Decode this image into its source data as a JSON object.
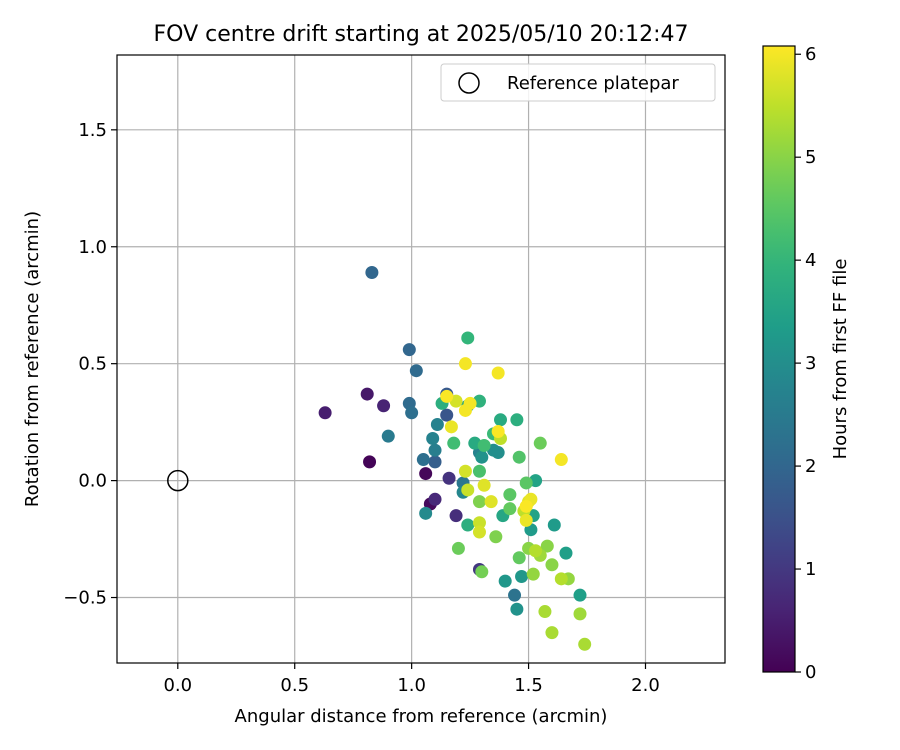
{
  "chart_data": {
    "type": "scatter",
    "title": "FOV centre drift starting at 2025/05/10 20:12:47",
    "xlabel": "Angular distance from reference (arcmin)",
    "ylabel": "Rotation from reference (arcmin)",
    "xlim": [
      -0.26,
      2.34
    ],
    "ylim": [
      -0.78,
      1.82
    ],
    "xticks": [
      {
        "v": 0.0,
        "label": "0.0"
      },
      {
        "v": 0.5,
        "label": "0.5"
      },
      {
        "v": 1.0,
        "label": "1.0"
      },
      {
        "v": 1.5,
        "label": "1.5"
      },
      {
        "v": 2.0,
        "label": "2.0"
      }
    ],
    "yticks": [
      {
        "v": -0.5,
        "label": "−0.5"
      },
      {
        "v": 0.0,
        "label": "0.0"
      },
      {
        "v": 0.5,
        "label": "0.5"
      },
      {
        "v": 1.0,
        "label": "1.0"
      },
      {
        "v": 1.5,
        "label": "1.5"
      }
    ],
    "grid": true,
    "legend": {
      "position": "top-right",
      "entries": [
        {
          "label": "Reference platepar",
          "marker": "open-circle"
        }
      ]
    },
    "reference_point": {
      "x": 0.0,
      "y": 0.0
    },
    "colorbar": {
      "label": "Hours from first FF file",
      "colormap": "viridis",
      "range": [
        0,
        6.08
      ],
      "ticks": [
        {
          "v": 0,
          "label": "0"
        },
        {
          "v": 1,
          "label": "1"
        },
        {
          "v": 2,
          "label": "2"
        },
        {
          "v": 3,
          "label": "3"
        },
        {
          "v": 4,
          "label": "4"
        },
        {
          "v": 5,
          "label": "5"
        },
        {
          "v": 6,
          "label": "6"
        }
      ]
    },
    "points": [
      {
        "x": 0.82,
        "y": 0.08,
        "c": 0.05
      },
      {
        "x": 1.06,
        "y": 0.03,
        "c": 0.1
      },
      {
        "x": 1.08,
        "y": -0.1,
        "c": 0.15
      },
      {
        "x": 0.81,
        "y": 0.37,
        "c": 0.4
      },
      {
        "x": 0.63,
        "y": 0.29,
        "c": 0.5
      },
      {
        "x": 0.88,
        "y": 0.32,
        "c": 0.6
      },
      {
        "x": 1.1,
        "y": -0.08,
        "c": 0.7
      },
      {
        "x": 1.19,
        "y": -0.15,
        "c": 0.8
      },
      {
        "x": 1.16,
        "y": 0.01,
        "c": 0.9
      },
      {
        "x": 1.29,
        "y": -0.38,
        "c": 1.0
      },
      {
        "x": 1.15,
        "y": 0.28,
        "c": 1.6
      },
      {
        "x": 1.15,
        "y": 0.37,
        "c": 1.7
      },
      {
        "x": 1.1,
        "y": 0.08,
        "c": 1.8
      },
      {
        "x": 0.83,
        "y": 0.89,
        "c": 2.0
      },
      {
        "x": 0.99,
        "y": 0.56,
        "c": 2.0
      },
      {
        "x": 1.02,
        "y": 0.47,
        "c": 2.1
      },
      {
        "x": 0.99,
        "y": 0.33,
        "c": 2.1
      },
      {
        "x": 1.0,
        "y": 0.29,
        "c": 2.2
      },
      {
        "x": 1.05,
        "y": 0.09,
        "c": 2.2
      },
      {
        "x": 1.44,
        "y": -0.49,
        "c": 2.3
      },
      {
        "x": 1.22,
        "y": -0.01,
        "c": 2.4
      },
      {
        "x": 0.9,
        "y": 0.19,
        "c": 2.5
      },
      {
        "x": 1.1,
        "y": 0.13,
        "c": 2.6
      },
      {
        "x": 1.09,
        "y": 0.18,
        "c": 2.7
      },
      {
        "x": 1.29,
        "y": 0.12,
        "c": 2.7
      },
      {
        "x": 1.11,
        "y": 0.24,
        "c": 2.7
      },
      {
        "x": 1.22,
        "y": -0.05,
        "c": 2.8
      },
      {
        "x": 1.06,
        "y": -0.14,
        "c": 2.9
      },
      {
        "x": 1.35,
        "y": 0.13,
        "c": 3.0
      },
      {
        "x": 1.37,
        "y": 0.12,
        "c": 3.0
      },
      {
        "x": 1.3,
        "y": 0.1,
        "c": 3.1
      },
      {
        "x": 1.45,
        "y": -0.55,
        "c": 3.1
      },
      {
        "x": 1.4,
        "y": -0.43,
        "c": 3.2
      },
      {
        "x": 1.47,
        "y": -0.41,
        "c": 3.2
      },
      {
        "x": 1.51,
        "y": -0.21,
        "c": 3.3
      },
      {
        "x": 1.61,
        "y": -0.19,
        "c": 3.3
      },
      {
        "x": 1.66,
        "y": -0.31,
        "c": 3.4
      },
      {
        "x": 1.72,
        "y": -0.49,
        "c": 3.4
      },
      {
        "x": 1.53,
        "y": 0.0,
        "c": 3.5
      },
      {
        "x": 1.52,
        "y": -0.15,
        "c": 3.5
      },
      {
        "x": 1.39,
        "y": -0.15,
        "c": 3.6
      },
      {
        "x": 1.24,
        "y": 0.32,
        "c": 3.6
      },
      {
        "x": 1.27,
        "y": 0.16,
        "c": 3.7
      },
      {
        "x": 1.38,
        "y": 0.26,
        "c": 3.7
      },
      {
        "x": 1.45,
        "y": 0.26,
        "c": 3.8
      },
      {
        "x": 1.24,
        "y": -0.19,
        "c": 3.8
      },
      {
        "x": 1.13,
        "y": 0.33,
        "c": 3.8
      },
      {
        "x": 1.29,
        "y": 0.34,
        "c": 3.9
      },
      {
        "x": 1.24,
        "y": 0.61,
        "c": 4.0
      },
      {
        "x": 1.35,
        "y": 0.2,
        "c": 4.1
      },
      {
        "x": 1.18,
        "y": 0.16,
        "c": 4.2
      },
      {
        "x": 1.31,
        "y": 0.15,
        "c": 4.2
      },
      {
        "x": 1.29,
        "y": 0.04,
        "c": 4.3
      },
      {
        "x": 1.46,
        "y": 0.1,
        "c": 4.4
      },
      {
        "x": 1.42,
        "y": -0.06,
        "c": 4.5
      },
      {
        "x": 1.49,
        "y": -0.01,
        "c": 4.5
      },
      {
        "x": 1.42,
        "y": -0.12,
        "c": 4.6
      },
      {
        "x": 1.46,
        "y": -0.33,
        "c": 4.6
      },
      {
        "x": 1.55,
        "y": 0.16,
        "c": 4.7
      },
      {
        "x": 1.2,
        "y": -0.29,
        "c": 4.7
      },
      {
        "x": 1.3,
        "y": -0.39,
        "c": 4.8
      },
      {
        "x": 1.29,
        "y": -0.09,
        "c": 4.9
      },
      {
        "x": 1.36,
        "y": -0.24,
        "c": 4.9
      },
      {
        "x": 1.5,
        "y": -0.29,
        "c": 5.0
      },
      {
        "x": 1.58,
        "y": -0.28,
        "c": 5.0
      },
      {
        "x": 1.6,
        "y": -0.36,
        "c": 5.0
      },
      {
        "x": 1.67,
        "y": -0.42,
        "c": 5.1
      },
      {
        "x": 1.52,
        "y": -0.4,
        "c": 5.1
      },
      {
        "x": 1.55,
        "y": -0.32,
        "c": 5.2
      },
      {
        "x": 1.72,
        "y": -0.57,
        "c": 5.2
      },
      {
        "x": 1.6,
        "y": -0.65,
        "c": 5.3
      },
      {
        "x": 1.74,
        "y": -0.7,
        "c": 5.3
      },
      {
        "x": 1.57,
        "y": -0.56,
        "c": 5.3
      },
      {
        "x": 1.53,
        "y": -0.3,
        "c": 5.4
      },
      {
        "x": 1.64,
        "y": -0.42,
        "c": 5.4
      },
      {
        "x": 1.48,
        "y": -0.13,
        "c": 5.5
      },
      {
        "x": 1.38,
        "y": 0.18,
        "c": 5.5
      },
      {
        "x": 1.24,
        "y": -0.04,
        "c": 5.6
      },
      {
        "x": 1.29,
        "y": -0.18,
        "c": 5.6
      },
      {
        "x": 1.29,
        "y": -0.22,
        "c": 5.7
      },
      {
        "x": 1.19,
        "y": 0.34,
        "c": 5.7
      },
      {
        "x": 1.23,
        "y": 0.04,
        "c": 5.7
      },
      {
        "x": 1.34,
        "y": -0.09,
        "c": 5.8
      },
      {
        "x": 1.31,
        "y": -0.02,
        "c": 5.8
      },
      {
        "x": 1.5,
        "y": -0.09,
        "c": 5.8
      },
      {
        "x": 1.51,
        "y": -0.08,
        "c": 5.9
      },
      {
        "x": 1.49,
        "y": -0.17,
        "c": 5.9
      },
      {
        "x": 1.17,
        "y": 0.23,
        "c": 5.9
      },
      {
        "x": 1.23,
        "y": 0.3,
        "c": 6.0
      },
      {
        "x": 1.25,
        "y": 0.33,
        "c": 6.0
      },
      {
        "x": 1.23,
        "y": 0.5,
        "c": 6.0
      },
      {
        "x": 1.37,
        "y": 0.46,
        "c": 6.0
      },
      {
        "x": 1.64,
        "y": 0.09,
        "c": 6.0
      },
      {
        "x": 1.37,
        "y": 0.21,
        "c": 6.05
      },
      {
        "x": 1.15,
        "y": 0.36,
        "c": 6.05
      },
      {
        "x": 1.49,
        "y": -0.11,
        "c": 6.05
      }
    ]
  }
}
